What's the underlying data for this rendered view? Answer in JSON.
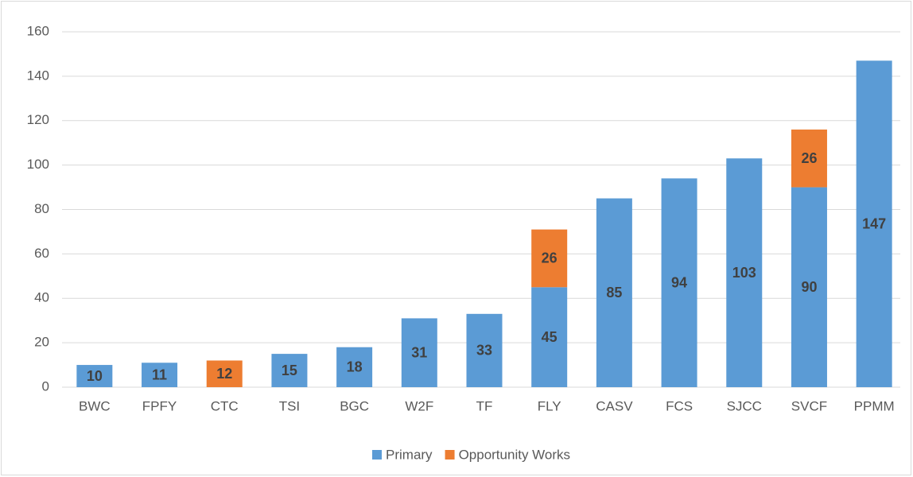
{
  "chart_data": {
    "type": "stacked_bar",
    "categories": [
      "BWC",
      "FPFY",
      "CTC",
      "TSI",
      "BGC",
      "W2F",
      "TF",
      "FLY",
      "CASV",
      "FCS",
      "SJCC",
      "SVCF",
      "PPMM"
    ],
    "series": [
      {
        "name": "Primary",
        "color": "#5b9bd5",
        "values": [
          10,
          11,
          null,
          15,
          18,
          31,
          33,
          45,
          85,
          94,
          103,
          90,
          147
        ]
      },
      {
        "name": "Opportunity Works",
        "color": "#ed7d31",
        "values": [
          null,
          null,
          12,
          null,
          null,
          null,
          null,
          26,
          null,
          null,
          null,
          26,
          null
        ]
      }
    ],
    "ylim": [
      0,
      160
    ],
    "yticks": [
      0,
      20,
      40,
      60,
      80,
      100,
      120,
      140,
      160
    ],
    "grid": true,
    "legend": "bottom"
  }
}
